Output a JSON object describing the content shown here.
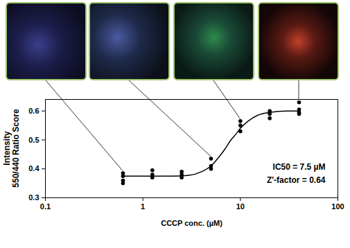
{
  "chart_data": {
    "type": "scatter",
    "x_label": "CCCP conc. (µM)",
    "y_label": "Intensity 550/440 Ratio Score",
    "log": "x",
    "grid": false,
    "xlim": [
      0.1,
      100
    ],
    "xticks": [
      0.1,
      1,
      10,
      100
    ],
    "ylim": [
      0.3,
      0.64
    ],
    "yticks": [
      0.3,
      0.4,
      0.5,
      0.6
    ],
    "annotations": [
      "IC50 = 7.5 µM",
      "Z'-factor = 0.64"
    ],
    "series": [
      {
        "type": "scatter",
        "color": "#000000",
        "marker": "circle",
        "x": [
          0.625,
          0.625,
          0.625,
          0.625,
          1.25,
          1.25,
          1.25,
          2.5,
          2.5,
          2.5,
          5,
          5,
          5,
          10,
          10,
          10,
          20,
          20,
          20,
          40,
          40,
          40,
          40
        ],
        "values": [
          0.385,
          0.375,
          0.36,
          0.35,
          0.395,
          0.38,
          0.37,
          0.39,
          0.38,
          0.37,
          0.435,
          0.41,
          0.4,
          0.565,
          0.55,
          0.53,
          0.6,
          0.59,
          0.575,
          0.63,
          0.605,
          0.595,
          0.59
        ]
      },
      {
        "type": "line",
        "color": "#000000",
        "line_style": "solid",
        "x": [
          0.625,
          1,
          2,
          3,
          4,
          5,
          6,
          7,
          8,
          9,
          10,
          12,
          15,
          20,
          30,
          40
        ],
        "values": [
          0.375,
          0.375,
          0.375,
          0.378,
          0.39,
          0.41,
          0.44,
          0.47,
          0.5,
          0.52,
          0.54,
          0.565,
          0.585,
          0.595,
          0.6,
          0.6
        ]
      }
    ]
  }
}
